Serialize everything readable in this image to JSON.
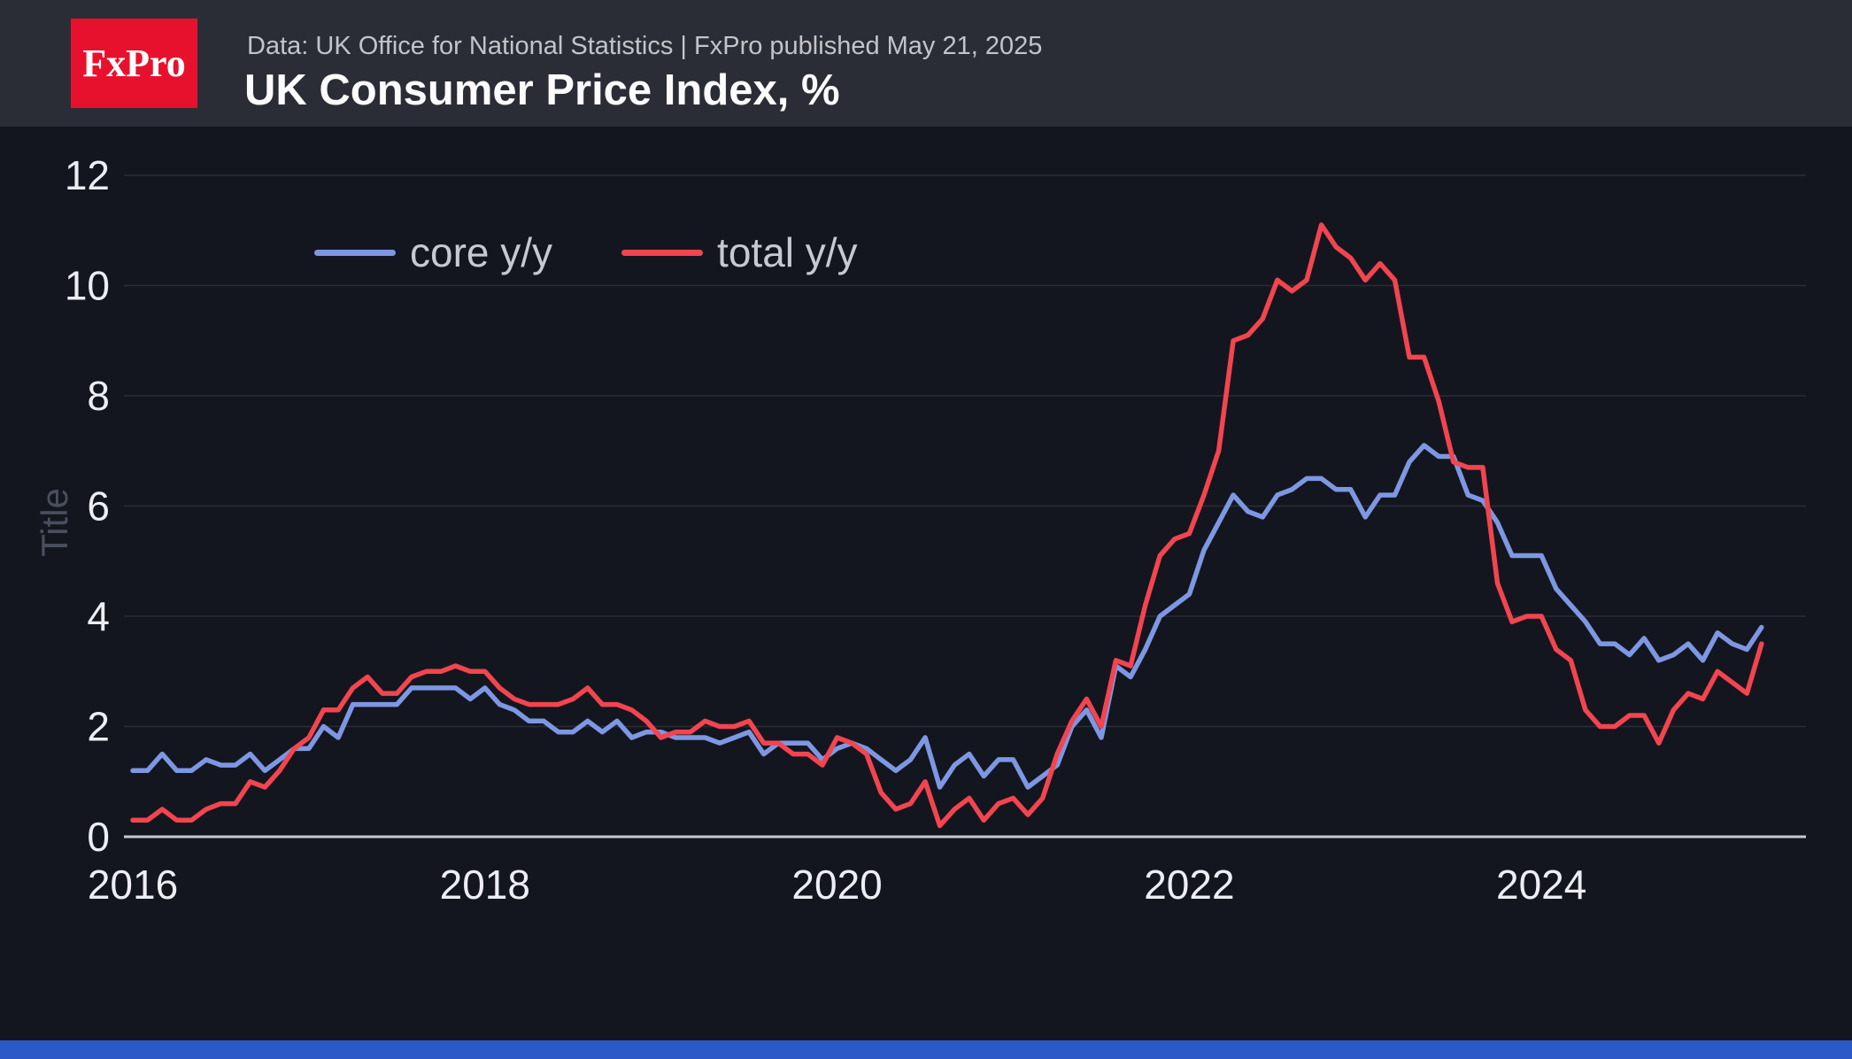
{
  "header": {
    "logo_text": "FxPro",
    "source_line": "Data: UK Office for National Statistics | FxPro published May 21, 2025",
    "title": "UK Consumer Price Index, %"
  },
  "colors": {
    "logo_red": "#e8112d",
    "core_blue": "#7d97e3",
    "total_red": "#f2454f",
    "bottom_bar_blue": "#2b5ac8",
    "header_bg": "#2b2d36",
    "chart_bg": "#14161f",
    "axis_label": "#eceef4",
    "zero_axis_line": "#c6c9d2"
  },
  "chart_data": {
    "type": "line",
    "title": "UK Consumer Price Index, %",
    "ylabel": "Title",
    "xlabel": "",
    "ylim": [
      0,
      12
    ],
    "y_ticks": [
      0,
      2,
      4,
      6,
      8,
      10,
      12
    ],
    "x_ticks": [
      2016,
      2018,
      2020,
      2022,
      2024
    ],
    "x_start": "2016-01",
    "x_end": "2025-04",
    "x_frequency": "monthly",
    "grid": "horizontal",
    "legend_position": "top-left inside plot",
    "series": [
      {
        "name": "core y/y",
        "color": "#7d97e3",
        "values": [
          1.2,
          1.2,
          1.5,
          1.2,
          1.2,
          1.4,
          1.3,
          1.3,
          1.5,
          1.2,
          1.4,
          1.6,
          1.6,
          2.0,
          1.8,
          2.4,
          2.4,
          2.4,
          2.4,
          2.7,
          2.7,
          2.7,
          2.7,
          2.5,
          2.7,
          2.4,
          2.3,
          2.1,
          2.1,
          1.9,
          1.9,
          2.1,
          1.9,
          2.1,
          1.8,
          1.9,
          1.9,
          1.8,
          1.8,
          1.8,
          1.7,
          1.8,
          1.9,
          1.5,
          1.7,
          1.7,
          1.7,
          1.4,
          1.6,
          1.7,
          1.6,
          1.4,
          1.2,
          1.4,
          1.8,
          0.9,
          1.3,
          1.5,
          1.1,
          1.4,
          1.4,
          0.9,
          1.1,
          1.3,
          2.0,
          2.3,
          1.8,
          3.1,
          2.9,
          3.4,
          4.0,
          4.2,
          4.4,
          5.2,
          5.7,
          6.2,
          5.9,
          5.8,
          6.2,
          6.3,
          6.5,
          6.5,
          6.3,
          6.3,
          5.8,
          6.2,
          6.2,
          6.8,
          7.1,
          6.9,
          6.9,
          6.2,
          6.1,
          5.7,
          5.1,
          5.1,
          5.1,
          4.5,
          4.2,
          3.9,
          3.5,
          3.5,
          3.3,
          3.6,
          3.2,
          3.3,
          3.5,
          3.2,
          3.7,
          3.5,
          3.4,
          3.8
        ]
      },
      {
        "name": "total y/y",
        "color": "#f2454f",
        "values": [
          0.3,
          0.3,
          0.5,
          0.3,
          0.3,
          0.5,
          0.6,
          0.6,
          1.0,
          0.9,
          1.2,
          1.6,
          1.8,
          2.3,
          2.3,
          2.7,
          2.9,
          2.6,
          2.6,
          2.9,
          3.0,
          3.0,
          3.1,
          3.0,
          3.0,
          2.7,
          2.5,
          2.4,
          2.4,
          2.4,
          2.5,
          2.7,
          2.4,
          2.4,
          2.3,
          2.1,
          1.8,
          1.9,
          1.9,
          2.1,
          2.0,
          2.0,
          2.1,
          1.7,
          1.7,
          1.5,
          1.5,
          1.3,
          1.8,
          1.7,
          1.5,
          0.8,
          0.5,
          0.6,
          1.0,
          0.2,
          0.5,
          0.7,
          0.3,
          0.6,
          0.7,
          0.4,
          0.7,
          1.5,
          2.1,
          2.5,
          2.0,
          3.2,
          3.1,
          4.2,
          5.1,
          5.4,
          5.5,
          6.2,
          7.0,
          9.0,
          9.1,
          9.4,
          10.1,
          9.9,
          10.1,
          11.1,
          10.7,
          10.5,
          10.1,
          10.4,
          10.1,
          8.7,
          8.7,
          7.9,
          6.8,
          6.7,
          6.7,
          4.6,
          3.9,
          4.0,
          4.0,
          3.4,
          3.2,
          2.3,
          2.0,
          2.0,
          2.2,
          2.2,
          1.7,
          2.3,
          2.6,
          2.5,
          3.0,
          2.8,
          2.6,
          3.5
        ]
      }
    ]
  }
}
